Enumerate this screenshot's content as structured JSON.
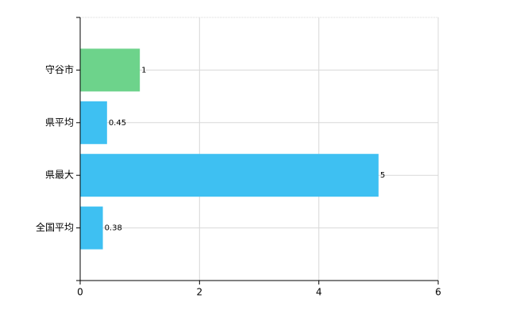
{
  "chart_data": {
    "type": "bar",
    "orientation": "horizontal",
    "categories": [
      "守谷市",
      "県平均",
      "県最大",
      "全国平均"
    ],
    "values": [
      1,
      0.45,
      5,
      0.38
    ],
    "colors": [
      "#6dd38b",
      "#3ec0f2",
      "#3ec0f2",
      "#3ec0f2"
    ],
    "xlim": [
      0,
      6
    ],
    "xticks": [
      0,
      2,
      4,
      6
    ],
    "grid": true
  }
}
